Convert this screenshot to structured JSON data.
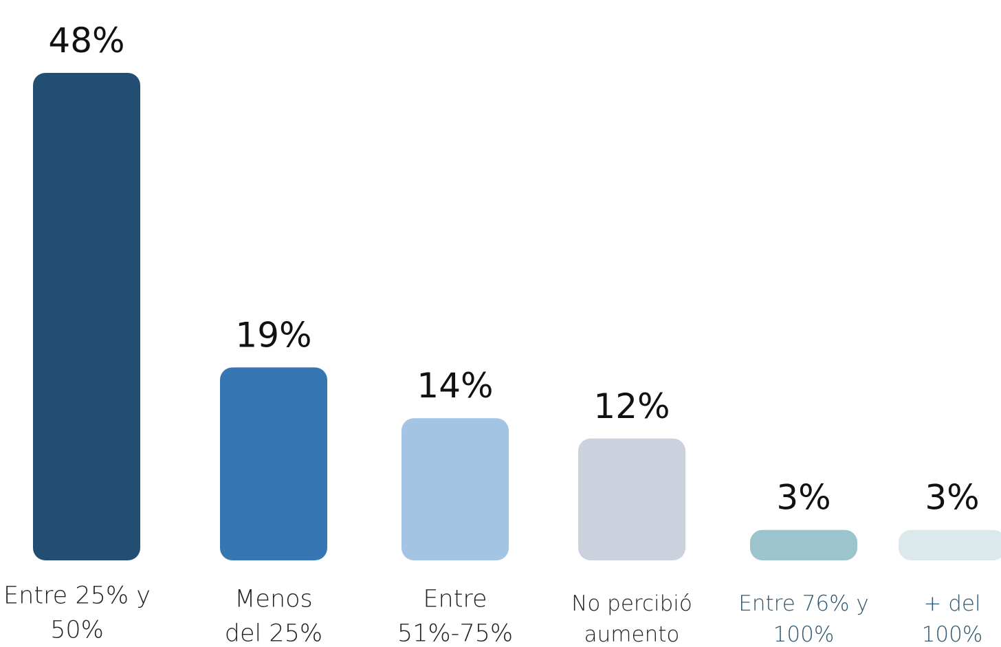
{
  "chart_data": {
    "type": "bar",
    "categories": [
      [
        "Entre 25% y",
        "50%"
      ],
      [
        "Menos",
        "del 25%"
      ],
      [
        "Entre",
        "51%-75%"
      ],
      [
        "No percibió",
        "aumento"
      ],
      [
        "Entre 76% y",
        "100%"
      ],
      [
        "+ del",
        "100%"
      ]
    ],
    "values": [
      48,
      19,
      14,
      12,
      3,
      3
    ],
    "value_labels": [
      "48%",
      "19%",
      "14%",
      "12%",
      "3%",
      "3%"
    ],
    "colors": [
      "#234e73",
      "#3677b3",
      "#a3c4e2",
      "#cbd2de",
      "#9cc4cc",
      "#dce9ec"
    ]
  }
}
